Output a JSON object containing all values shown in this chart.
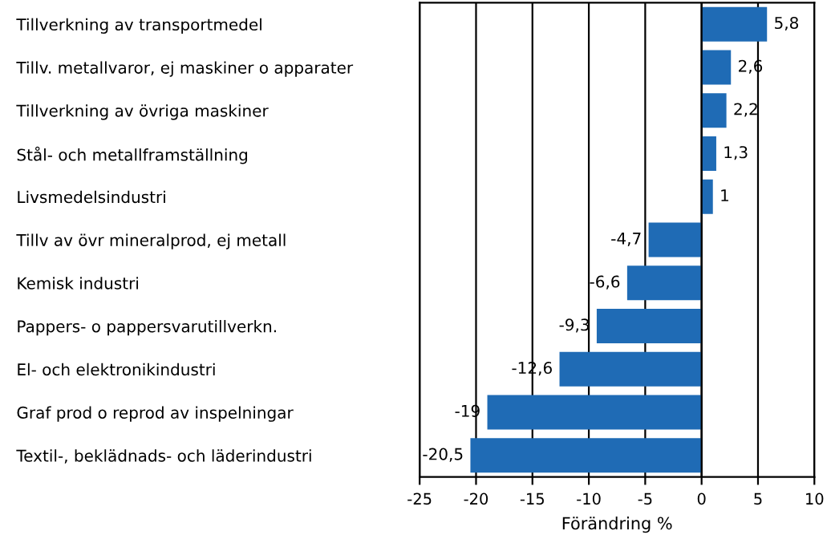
{
  "chart_data": {
    "type": "bar",
    "orientation": "horizontal",
    "categories": [
      "Tillverkning av transportmedel",
      "Tillv. metallvaror, ej maskiner o apparater",
      "Tillverkning av övriga maskiner",
      "Stål- och metallframställning",
      "Livsmedelsindustri",
      "Tillv av övr mineralprod, ej metall",
      "Kemisk industri",
      "Pappers- o pappersvarutillverkn.",
      "El- och elektronikindustri",
      "Graf prod o reprod av inspelningar",
      "Textil-, beklädnads- och läderindustri"
    ],
    "values": [
      5.8,
      2.6,
      2.2,
      1.3,
      1,
      -4.7,
      -6.6,
      -9.3,
      -12.6,
      -19,
      -20.5
    ],
    "value_labels": [
      "5,8",
      "2,6",
      "2,2",
      "1,3",
      "1",
      "-4,7",
      "-6,6",
      "-9,3",
      "-12,6",
      "-19",
      "-20,5"
    ],
    "color": "#1f6bb5",
    "xlabel": "Förändring %",
    "xlim": [
      -25,
      10
    ],
    "xticks": [
      -25,
      -20,
      -15,
      -10,
      -5,
      0,
      5,
      10
    ],
    "grid": "x",
    "legend": false
  }
}
